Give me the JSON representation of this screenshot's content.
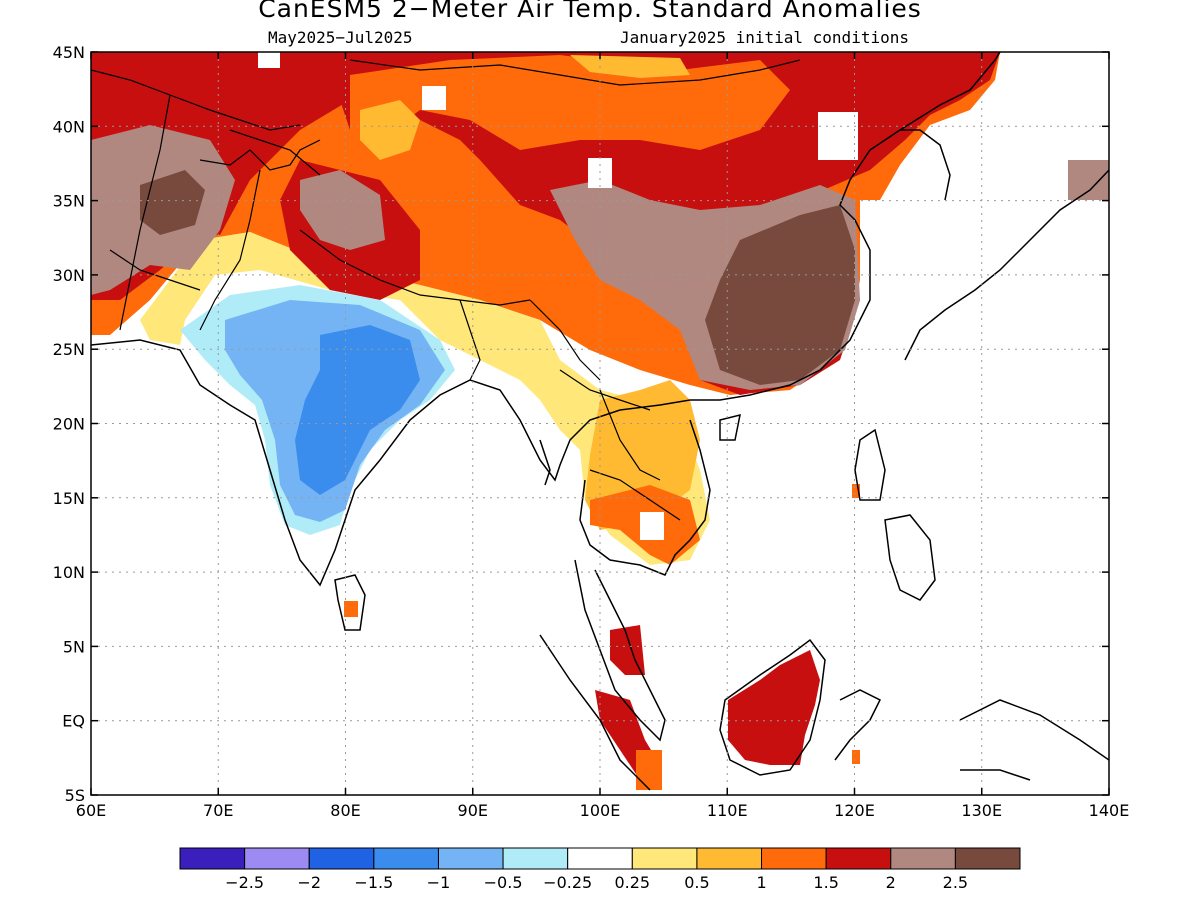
{
  "title": "CanESM5 2−Meter Air Temp. Standard Anomalies",
  "period": "May2025−Jul2025",
  "init": "January2025 initial conditions",
  "map": {
    "lon_range": [
      60,
      140
    ],
    "lat_range": [
      -5,
      45
    ],
    "lon_ticks": [
      {
        "v": 60,
        "t": "60E"
      },
      {
        "v": 70,
        "t": "70E"
      },
      {
        "v": 80,
        "t": "80E"
      },
      {
        "v": 90,
        "t": "90E"
      },
      {
        "v": 100,
        "t": "100E"
      },
      {
        "v": 110,
        "t": "110E"
      },
      {
        "v": 120,
        "t": "120E"
      },
      {
        "v": 130,
        "t": "130E"
      },
      {
        "v": 140,
        "t": "140E"
      }
    ],
    "lat_ticks": [
      {
        "v": 45,
        "t": "45N"
      },
      {
        "v": 40,
        "t": "40N"
      },
      {
        "v": 35,
        "t": "35N"
      },
      {
        "v": 30,
        "t": "30N"
      },
      {
        "v": 25,
        "t": "25N"
      },
      {
        "v": 20,
        "t": "20N"
      },
      {
        "v": 15,
        "t": "15N"
      },
      {
        "v": 10,
        "t": "10N"
      },
      {
        "v": 5,
        "t": "5N"
      },
      {
        "v": 0,
        "t": "EQ"
      },
      {
        "v": -5,
        "t": "5S"
      }
    ],
    "gridlines": "dotted",
    "region": "South and East Asia"
  },
  "colorbar": {
    "colors": [
      "#3a1fbd",
      "#9d8af2",
      "#1f62e3",
      "#3a8ced",
      "#74b4f5",
      "#b0ecf7",
      "#ffffff",
      "#ffe77a",
      "#ffba32",
      "#ff6a0a",
      "#c70f0f",
      "#b08880",
      "#784a3e"
    ],
    "labels": [
      "−2.5",
      "−2",
      "−1.5",
      "−1",
      "−0.5",
      "−0.25",
      "0.25",
      "0.5",
      "1",
      "1.5",
      "2",
      "2.5"
    ]
  }
}
